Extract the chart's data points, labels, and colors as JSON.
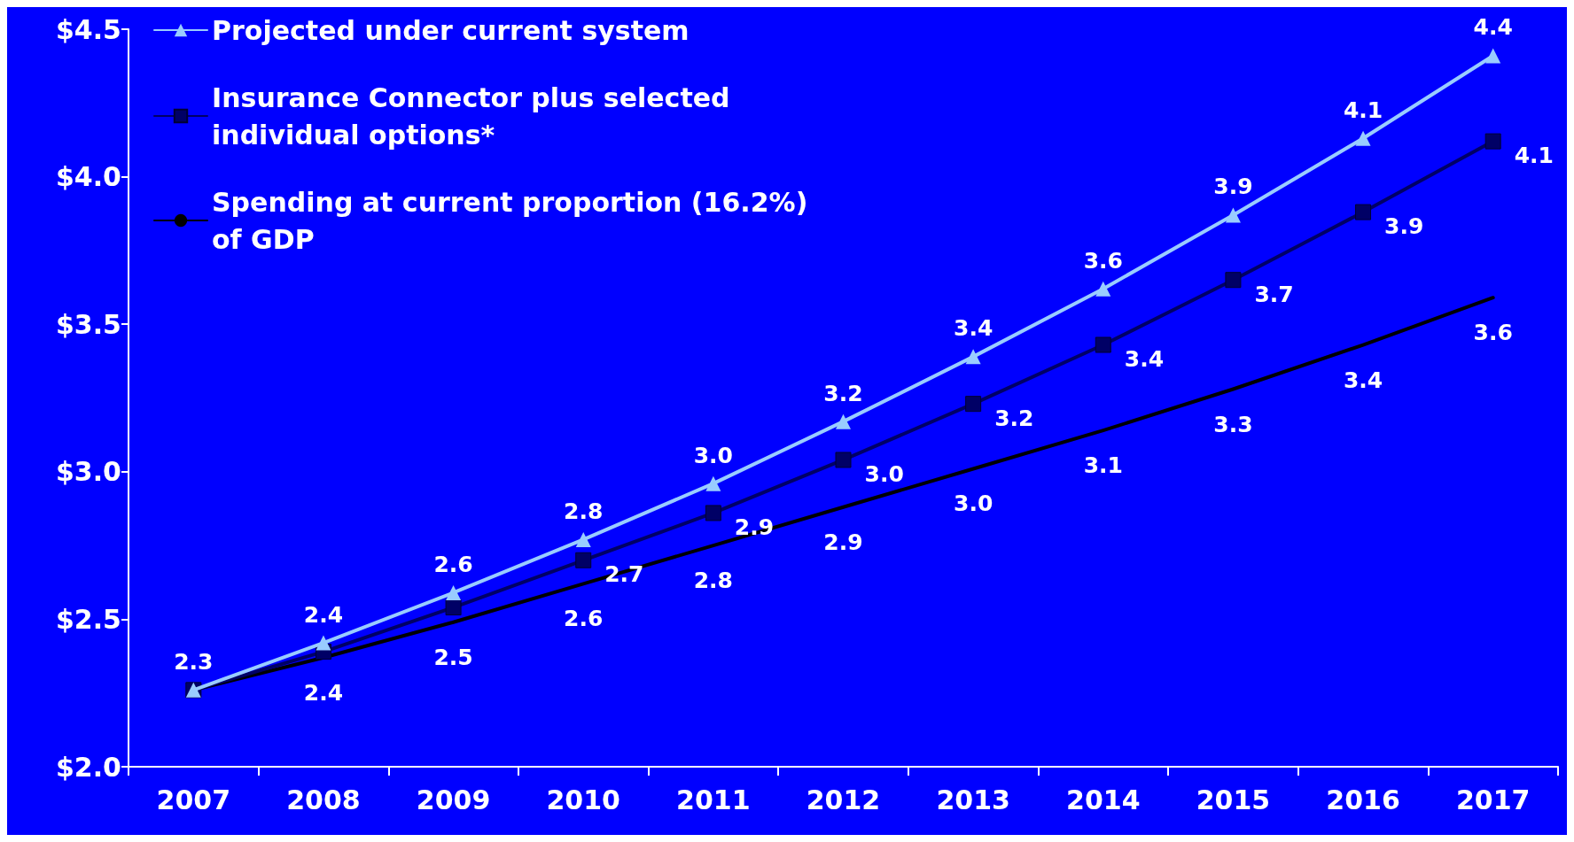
{
  "chart_data": {
    "type": "line",
    "categories": [
      "2007",
      "2008",
      "2009",
      "2010",
      "2011",
      "2012",
      "2013",
      "2014",
      "2015",
      "2016",
      "2017"
    ],
    "ylim": [
      2.0,
      4.5
    ],
    "yticks": [
      {
        "value": 2.0,
        "label": "$2.0"
      },
      {
        "value": 2.5,
        "label": "$2.5"
      },
      {
        "value": 3.0,
        "label": "$3.0"
      },
      {
        "value": 3.5,
        "label": "$3.5"
      },
      {
        "value": 4.0,
        "label": "$4.0"
      },
      {
        "value": 4.5,
        "label": "$4.5"
      }
    ],
    "grid": false,
    "legend": "top left",
    "series": [
      {
        "name": "Projected under current system",
        "color": "#99ccff",
        "marker": "triangle",
        "values": [
          2.26,
          2.42,
          2.59,
          2.77,
          2.96,
          3.17,
          3.39,
          3.62,
          3.87,
          4.13,
          4.41
        ],
        "value_labels": [
          "2.3",
          "2.4",
          "2.6",
          "2.8",
          "3.0",
          "3.2",
          "3.4",
          "3.6",
          "3.9",
          "4.1",
          "4.4"
        ]
      },
      {
        "name": "Insurance Connector plus selected individual options*",
        "color": "#000066",
        "marker": "square",
        "values": [
          2.26,
          2.39,
          2.54,
          2.7,
          2.86,
          3.04,
          3.23,
          3.43,
          3.65,
          3.88,
          4.12
        ],
        "value_labels": [
          null,
          null,
          null,
          "2.7",
          "2.9",
          "3.0",
          "3.2",
          "3.4",
          "3.7",
          "3.9",
          "4.1"
        ]
      },
      {
        "name": "Spending at current proportion (16.2%) of GDP",
        "color": "#000000",
        "marker": "none",
        "values": [
          2.26,
          2.37,
          2.49,
          2.62,
          2.75,
          2.88,
          3.01,
          3.14,
          3.28,
          3.43,
          3.59
        ],
        "value_labels": [
          null,
          "2.4",
          "2.5",
          "2.6",
          "2.8",
          "2.9",
          "3.0",
          "3.1",
          "3.3",
          "3.4",
          "3.6"
        ]
      }
    ]
  }
}
